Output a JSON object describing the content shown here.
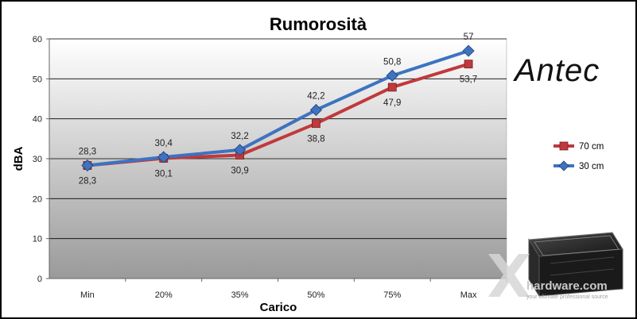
{
  "chart_data": {
    "type": "line",
    "title": "Rumorosità",
    "xlabel": "Carico",
    "ylabel": "dBA",
    "categories": [
      "Min",
      "20%",
      "35%",
      "50%",
      "75%",
      "Max"
    ],
    "ylim": [
      0,
      60
    ],
    "yticks": [
      "0",
      "10",
      "20",
      "30",
      "40",
      "50",
      "60"
    ],
    "grid": true,
    "legend_position": "right",
    "series": [
      {
        "name": "70 cm",
        "values": [
          28.3,
          30.1,
          30.9,
          38.8,
          47.9,
          53.7
        ],
        "labels": [
          "28,3",
          "30,1",
          "30,9",
          "38,8",
          "47,9",
          "53,7"
        ],
        "label_position": "below",
        "color": "#c0393c",
        "marker": "square"
      },
      {
        "name": "30 cm",
        "values": [
          28.3,
          30.4,
          32.2,
          42.2,
          50.8,
          57
        ],
        "labels": [
          "28,3",
          "30,4",
          "32,2",
          "42,2",
          "50,8",
          "57"
        ],
        "label_position": "above",
        "color": "#3d73c0",
        "marker": "diamond"
      }
    ]
  },
  "branding": {
    "logo_text": "Antec",
    "watermark_main": "hardware.com",
    "watermark_sub": "your ultimate professional source"
  }
}
